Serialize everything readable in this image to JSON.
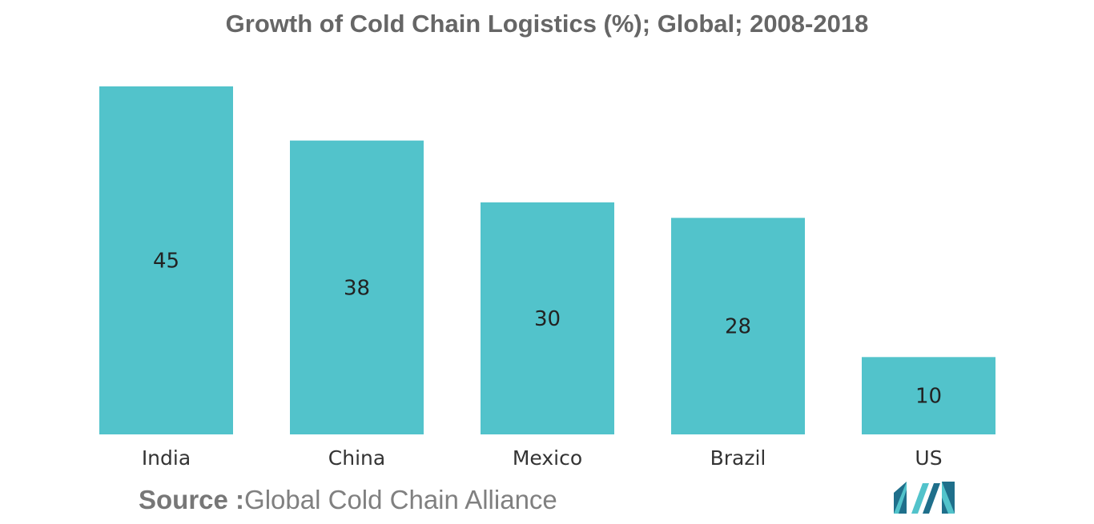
{
  "chart_data": {
    "type": "bar",
    "title": "Growth of Cold Chain Logistics (%); Global; 2008-2018",
    "categories": [
      "India",
      "China",
      "Mexico",
      "Brazil",
      "US"
    ],
    "values": [
      45,
      38,
      30,
      28,
      10
    ],
    "data_labels": [
      "45",
      "38",
      "30",
      "28",
      "10"
    ],
    "xlabel": "",
    "ylabel": "",
    "ylim": [
      0,
      45
    ],
    "grid": false,
    "legend": "none",
    "bar_color": "#52C3CB"
  },
  "source": {
    "label": "Source :",
    "text": "Global Cold Chain Alliance"
  },
  "colors": {
    "bar": "#52C3CB",
    "logo_dark": "#1F6F8B",
    "logo_light": "#52C3CB"
  },
  "logo": {
    "icon": "company-logo-icon"
  }
}
